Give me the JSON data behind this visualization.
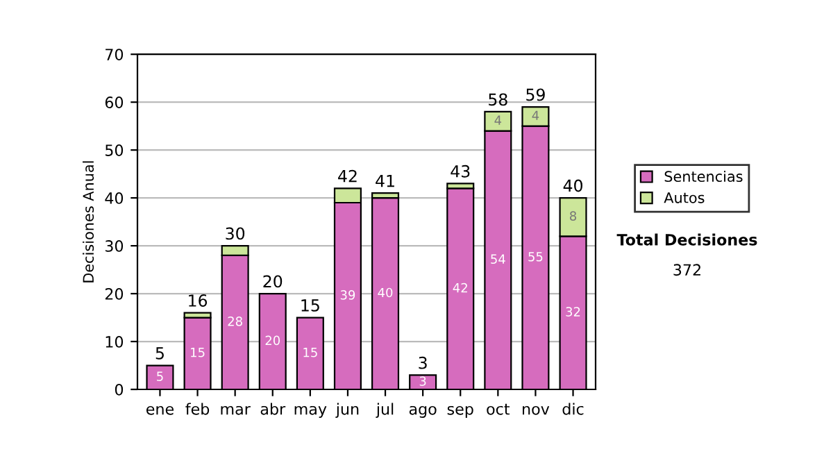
{
  "chart_data": {
    "type": "bar",
    "stacked": true,
    "ylabel": "Decisiones Anual",
    "categories": [
      "ene",
      "feb",
      "mar",
      "abr",
      "may",
      "jun",
      "jul",
      "ago",
      "sep",
      "oct",
      "nov",
      "dic"
    ],
    "series": [
      {
        "name": "Sentencias",
        "color": "#d66cbe",
        "values": [
          5,
          15,
          28,
          20,
          15,
          39,
          40,
          3,
          42,
          54,
          55,
          32
        ],
        "value_labels": [
          "5",
          "15",
          "28",
          "20",
          "15",
          "39",
          "40",
          "3",
          "42",
          "54",
          "55",
          "32"
        ]
      },
      {
        "name": "Autos",
        "color": "#cce69a",
        "values": [
          null,
          1,
          2,
          null,
          null,
          3,
          1,
          null,
          1,
          4,
          4,
          8
        ],
        "value_labels": [
          null,
          null,
          null,
          null,
          null,
          null,
          null,
          null,
          null,
          "4",
          "4",
          "8"
        ]
      }
    ],
    "totals": [
      "5",
      "16",
      "30",
      "20",
      "15",
      "42",
      "41",
      "3",
      "43",
      "58",
      "59",
      "40"
    ],
    "ylim": [
      0,
      70
    ],
    "yticks": [
      0,
      10,
      20,
      30,
      40,
      50,
      60,
      70
    ],
    "grid": "y",
    "legend": "right",
    "annotations": [
      "Total Decisiones",
      "372"
    ]
  }
}
